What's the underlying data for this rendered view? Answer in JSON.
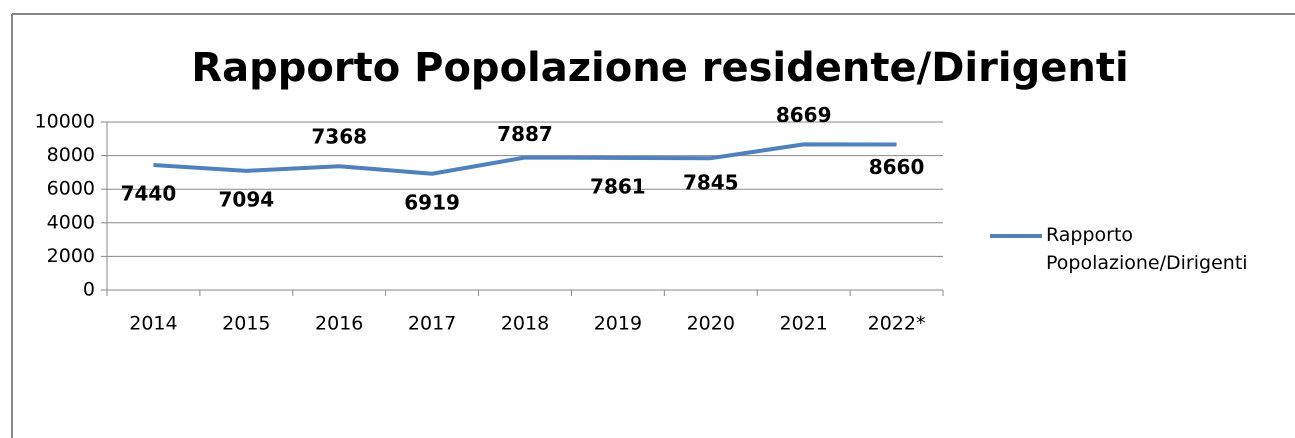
{
  "chart_data": {
    "type": "line",
    "title": "Rapporto Popolazione residente/Dirigenti",
    "categories": [
      "2014",
      "2015",
      "2016",
      "2017",
      "2018",
      "2019",
      "2020",
      "2021",
      "2022*"
    ],
    "series": [
      {
        "name": "Rapporto Popolazione/Dirigenti",
        "color": "#4f81bd",
        "values": [
          7440,
          7094,
          7368,
          6919,
          7887,
          7861,
          7845,
          8669,
          8660
        ]
      }
    ],
    "ylim": [
      0,
      10000
    ],
    "yticks": [
      0,
      2000,
      4000,
      6000,
      8000,
      10000
    ],
    "grid": true,
    "legend": "right"
  }
}
